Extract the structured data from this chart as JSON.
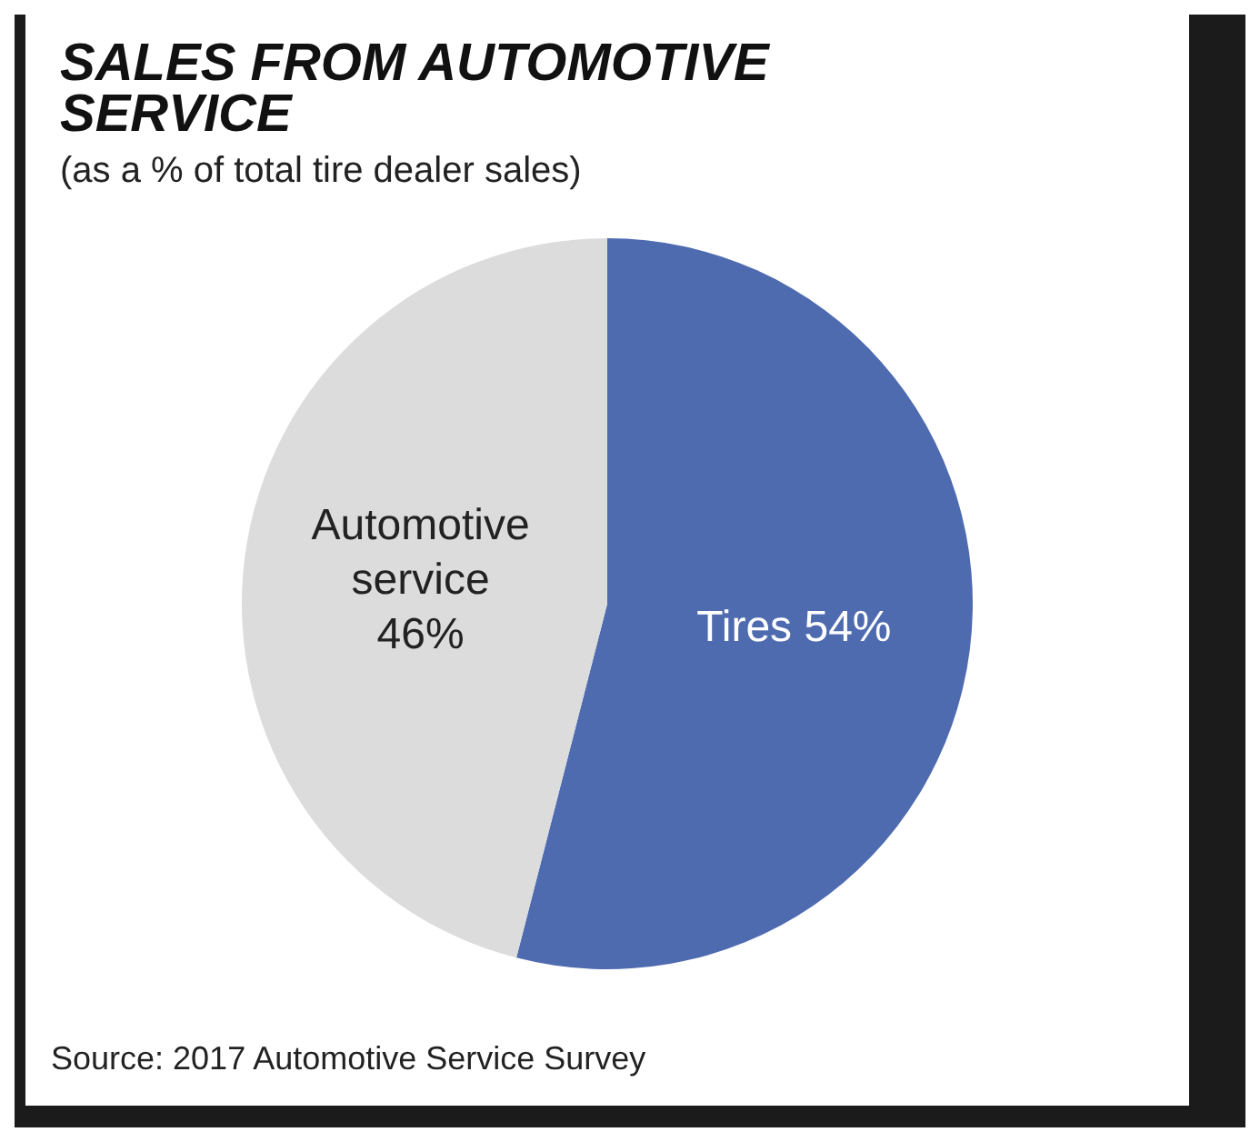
{
  "chart_data": {
    "type": "pie",
    "title": "SALES FROM AUTOMOTIVE SERVICE",
    "subtitle": "(as a % of total tire dealer sales)",
    "categories": [
      "Tires",
      "Automotive service"
    ],
    "values": [
      54,
      46
    ],
    "colors": [
      "#4f6bb0",
      "#dcdcdc"
    ],
    "value_labels": [
      "54%",
      "46%"
    ],
    "annotations": [
      "Source: 2017 Automotive Service Survey"
    ]
  }
}
